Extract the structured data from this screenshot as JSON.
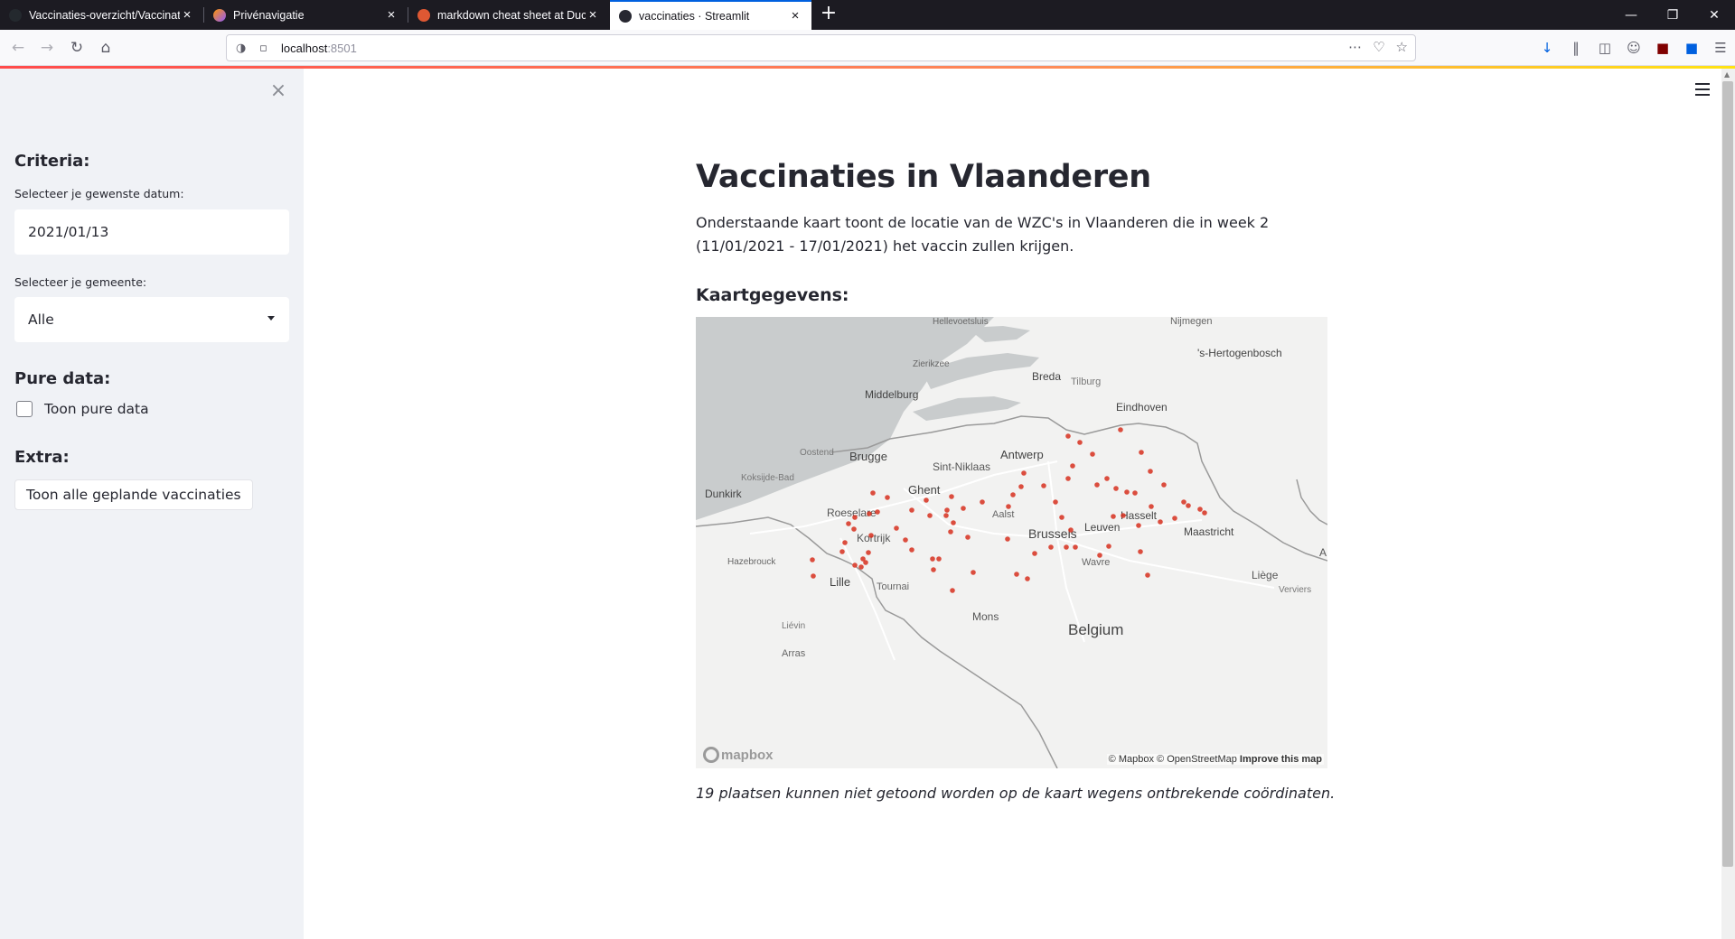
{
  "browser": {
    "tabs": [
      {
        "label": "Vaccinaties-overzicht/Vaccinati",
        "favicon_color": "#24292e"
      },
      {
        "label": "Privénavigatie",
        "favicon_color": "#9059ff"
      },
      {
        "label": "markdown cheat sheet at Duck",
        "favicon_color": "#de5833"
      },
      {
        "label": "vaccinaties · Streamlit",
        "favicon_color": "#262730"
      }
    ],
    "url_host": "localhost",
    "url_port": ":8501",
    "new_tab": "+",
    "close_glyph": "×"
  },
  "sidebar": {
    "close": "×",
    "criteria_header": "Criteria:",
    "date_label": "Selecteer je gewenste datum:",
    "date_value": "2021/01/13",
    "gemeente_label": "Selecteer je gemeente:",
    "gemeente_value": "Alle",
    "pure_header": "Pure data:",
    "pure_checkbox_label": "Toon pure data",
    "extra_header": "Extra:",
    "extra_button": "Toon alle geplande vaccinaties"
  },
  "main": {
    "title": "Vaccinaties in Vlaanderen",
    "intro": "Onderstaande kaart toont de locatie van de WZC's in Vlaanderen die in week 2 (11/01/2021 - 17/01/2021) het vaccin zullen krijgen.",
    "map_header": "Kaartgegevens:",
    "caption": "19 plaatsen kunnen niet getoond worden op de kaart wegens ontbrekende coördinaten."
  },
  "map": {
    "place_labels": [
      "Hellevoetsluis",
      "Nijmegen",
      "'s-Hertogenbosch",
      "Zierikzee",
      "Breda",
      "Tilburg",
      "Middelburg",
      "Eindhoven",
      "Oostend",
      "Brugge",
      "Antwerp",
      "Sint-Niklaas",
      "Koksijde-Bad",
      "Dunkirk",
      "Ghent",
      "Roeselare",
      "Aalst",
      "Hasselt",
      "Maastricht",
      "Kortrijk",
      "Brussels",
      "Leuven",
      "Hazebrouck",
      "Wavre",
      "Lille",
      "Tournai",
      "Liège",
      "Verviers",
      "Mons",
      "Belgium",
      "Liévin",
      "Arras",
      "A"
    ],
    "attribution_mapbox": "© Mapbox",
    "attribution_osm": "© OpenStreetMap",
    "attribution_improve": "Improve this map",
    "logo_text": "mapbox",
    "point_color": "#d7301f",
    "water_color": "#c9cccd",
    "land_color": "#f2f2f1"
  }
}
